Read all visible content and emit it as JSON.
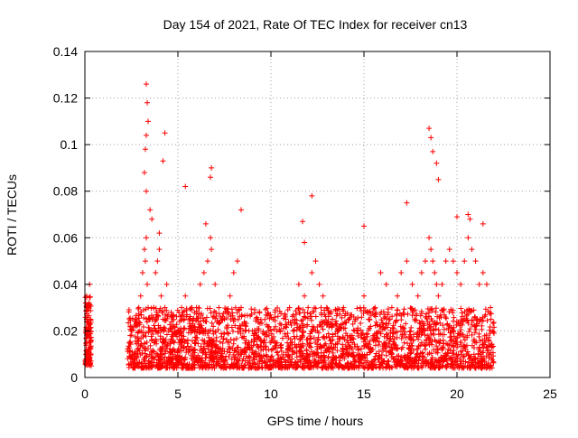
{
  "chart_data": {
    "type": "scatter",
    "title": "Day 154 of 2021, Rate Of TEC Index for receiver cn13",
    "xlabel": "GPS time / hours",
    "ylabel": "ROTI / TECUs",
    "xlim": [
      0,
      25
    ],
    "ylim": [
      0,
      0.14
    ],
    "x_ticks": [
      0,
      5,
      10,
      15,
      20,
      25
    ],
    "x_tick_labels": [
      "0",
      "5",
      "10",
      "15",
      "20",
      "25"
    ],
    "y_ticks": [
      0,
      0.02,
      0.04,
      0.06,
      0.08,
      0.1,
      0.12,
      0.14
    ],
    "y_tick_labels": [
      "0",
      "0.02",
      "0.04",
      "0.06",
      "0.08",
      "0.1",
      "0.12",
      "0.14"
    ],
    "grid": true,
    "marker": "plus",
    "marker_color": "#ff0000",
    "series": [
      {
        "x": [
          0.05,
          0.1,
          0.15,
          0.2,
          0.25,
          0.3,
          0.1,
          0.2,
          0.25,
          0.15,
          2.4,
          2.5,
          2.7,
          2.9,
          3.0,
          3.1,
          3.2,
          3.25,
          3.3,
          3.35,
          3.4,
          3.5,
          3.6,
          3.7,
          3.8,
          3.9,
          4.0,
          4.1,
          4.2,
          4.3,
          4.4,
          4.5,
          4.8,
          5.0,
          5.2,
          5.4,
          5.6,
          5.8,
          6.0,
          6.2,
          6.4,
          6.6,
          6.75,
          6.8,
          7.0,
          7.2,
          7.5,
          7.8,
          8.0,
          8.2,
          8.4,
          8.5,
          8.8,
          9.0,
          9.3,
          9.6,
          9.9,
          10.2,
          10.5,
          10.8,
          11.0,
          11.2,
          11.5,
          11.8,
          12.0,
          12.2,
          12.4,
          12.6,
          12.8,
          13.0,
          13.3,
          13.6,
          13.9,
          14.2,
          14.5,
          14.8,
          15.0,
          15.3,
          15.6,
          15.9,
          16.2,
          16.5,
          16.8,
          17.0,
          17.3,
          17.6,
          17.9,
          18.1,
          18.3,
          18.5,
          18.6,
          18.7,
          18.8,
          18.9,
          19.0,
          19.2,
          19.4,
          19.6,
          19.8,
          20.0,
          20.2,
          20.4,
          20.6,
          20.8,
          21.0,
          21.2,
          21.4,
          21.6,
          21.8,
          21.9,
          3.3,
          3.35,
          3.4,
          3.3,
          3.25,
          4.3,
          4.2,
          5.4,
          6.8,
          6.75,
          8.4,
          12.2,
          15.0,
          18.5,
          18.6,
          18.7,
          18.9,
          19.0,
          17.3,
          20.6,
          20.7,
          21.4,
          3.2,
          3.3,
          3.5,
          3.6,
          4.0,
          6.5,
          11.7,
          11.8,
          20.0
        ],
        "y": [
          0.01,
          0.015,
          0.02,
          0.012,
          0.008,
          0.025,
          0.03,
          0.018,
          0.04,
          0.01,
          0.015,
          0.02,
          0.025,
          0.03,
          0.035,
          0.045,
          0.055,
          0.05,
          0.06,
          0.04,
          0.03,
          0.025,
          0.02,
          0.03,
          0.045,
          0.05,
          0.055,
          0.035,
          0.025,
          0.03,
          0.04,
          0.02,
          0.015,
          0.02,
          0.03,
          0.035,
          0.025,
          0.02,
          0.03,
          0.04,
          0.045,
          0.05,
          0.06,
          0.055,
          0.04,
          0.03,
          0.025,
          0.035,
          0.045,
          0.05,
          0.03,
          0.02,
          0.015,
          0.02,
          0.025,
          0.015,
          0.02,
          0.015,
          0.02,
          0.025,
          0.03,
          0.02,
          0.04,
          0.035,
          0.03,
          0.045,
          0.05,
          0.04,
          0.035,
          0.03,
          0.025,
          0.02,
          0.03,
          0.025,
          0.02,
          0.03,
          0.035,
          0.025,
          0.03,
          0.045,
          0.04,
          0.03,
          0.035,
          0.045,
          0.05,
          0.04,
          0.035,
          0.045,
          0.05,
          0.06,
          0.055,
          0.05,
          0.045,
          0.04,
          0.035,
          0.04,
          0.05,
          0.055,
          0.05,
          0.045,
          0.04,
          0.05,
          0.06,
          0.055,
          0.05,
          0.04,
          0.045,
          0.04,
          0.03,
          0.02,
          0.126,
          0.118,
          0.11,
          0.104,
          0.098,
          0.105,
          0.093,
          0.082,
          0.09,
          0.086,
          0.072,
          0.078,
          0.065,
          0.107,
          0.103,
          0.097,
          0.092,
          0.085,
          0.075,
          0.07,
          0.068,
          0.066,
          0.088,
          0.08,
          0.072,
          0.068,
          0.062,
          0.066,
          0.067,
          0.058,
          0.069
        ]
      }
    ],
    "dense_band": {
      "x_start": 2.3,
      "x_end": 22.0,
      "y_low": 0.004,
      "y_high": 0.03
    }
  }
}
